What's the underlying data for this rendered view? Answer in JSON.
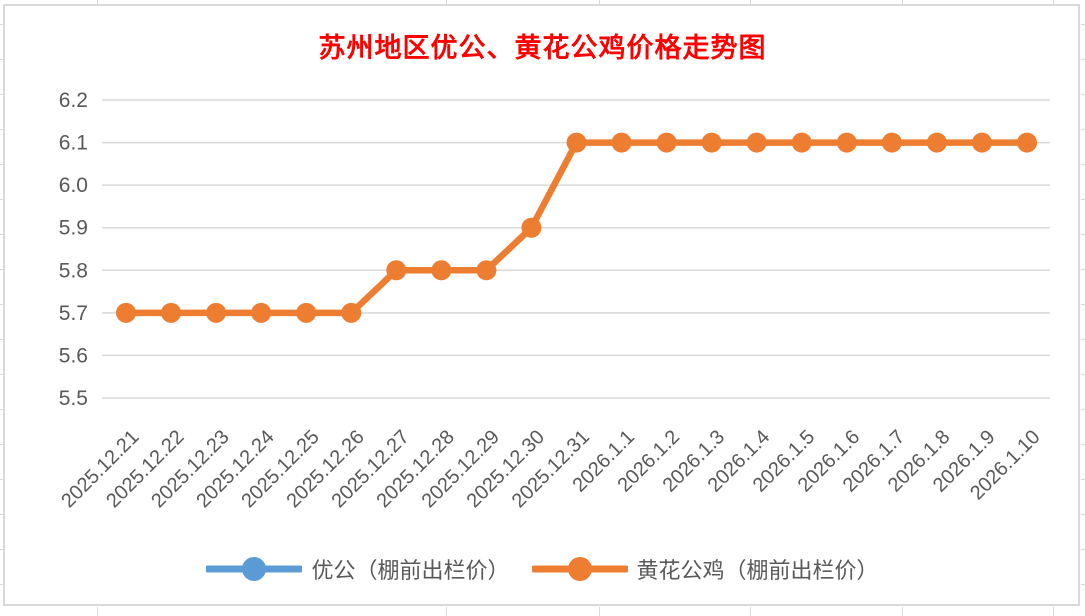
{
  "chart_data": {
    "type": "line",
    "title": "苏州地区优公、黄花公鸡价格走势图",
    "title_color": "#FF0000",
    "categories": [
      "2025.12.21",
      "2025.12.22",
      "2025.12.23",
      "2025.12.24",
      "2025.12.25",
      "2025.12.26",
      "2025.12.27",
      "2025.12.28",
      "2025.12.29",
      "2025.12.30",
      "2025.12.31",
      "2026.1.1",
      "2026.1.2",
      "2026.1.3",
      "2026.1.4",
      "2026.1.5",
      "2026.1.6",
      "2026.1.7",
      "2026.1.8",
      "2026.1.9",
      "2026.1.10"
    ],
    "series": [
      {
        "name": "优公（棚前出栏价）",
        "color": "#5B9BD5",
        "values": []
      },
      {
        "name": "黄花公鸡（棚前出栏价）",
        "color": "#ED7D31",
        "values": [
          5.7,
          5.7,
          5.7,
          5.7,
          5.7,
          5.7,
          5.8,
          5.8,
          5.8,
          5.9,
          6.1,
          6.1,
          6.1,
          6.1,
          6.1,
          6.1,
          6.1,
          6.1,
          6.1,
          6.1,
          6.1
        ]
      }
    ],
    "ylim": [
      5.5,
      6.2
    ],
    "ytick_step": 0.1,
    "yticks": [
      "6.2",
      "6.1",
      "6.0",
      "5.9",
      "5.8",
      "5.7",
      "5.6",
      "5.5"
    ],
    "xlabel": "",
    "ylabel": "",
    "grid": "horizontal",
    "legend_position": "bottom",
    "x_tick_rotation_deg": 45,
    "axis_label_color": "#595959",
    "gridline_color": "#D9D9D9"
  }
}
